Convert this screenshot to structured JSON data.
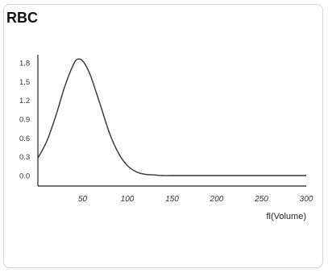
{
  "card": {
    "title": "RBC"
  },
  "chart_data": {
    "type": "line",
    "title": "RBC",
    "xlabel": "fl(Volume)",
    "ylabel": "",
    "xlim": [
      0,
      300
    ],
    "ylim": [
      0,
      1.8
    ],
    "x_ticks": [
      50,
      100,
      150,
      200,
      250,
      300
    ],
    "y_ticks": [
      0.0,
      0.3,
      0.6,
      0.9,
      1.2,
      1.5,
      1.8
    ],
    "y_tick_labels": [
      "0.0",
      "0.3",
      "0.6",
      "0.9",
      "1.2",
      "1.5",
      "1.8"
    ],
    "grid": false,
    "series": [
      {
        "color": "#333333",
        "x": [
          0,
          10,
          20,
          30,
          40,
          45,
          50,
          55,
          60,
          70,
          80,
          90,
          100,
          110,
          120,
          130,
          140,
          150,
          175,
          200,
          250,
          300
        ],
        "values": [
          0.28,
          0.55,
          0.95,
          1.42,
          1.78,
          1.86,
          1.83,
          1.72,
          1.55,
          1.12,
          0.68,
          0.36,
          0.16,
          0.06,
          0.02,
          0.01,
          0.0,
          0.0,
          0.0,
          0.0,
          0.0,
          0.0
        ]
      }
    ]
  }
}
